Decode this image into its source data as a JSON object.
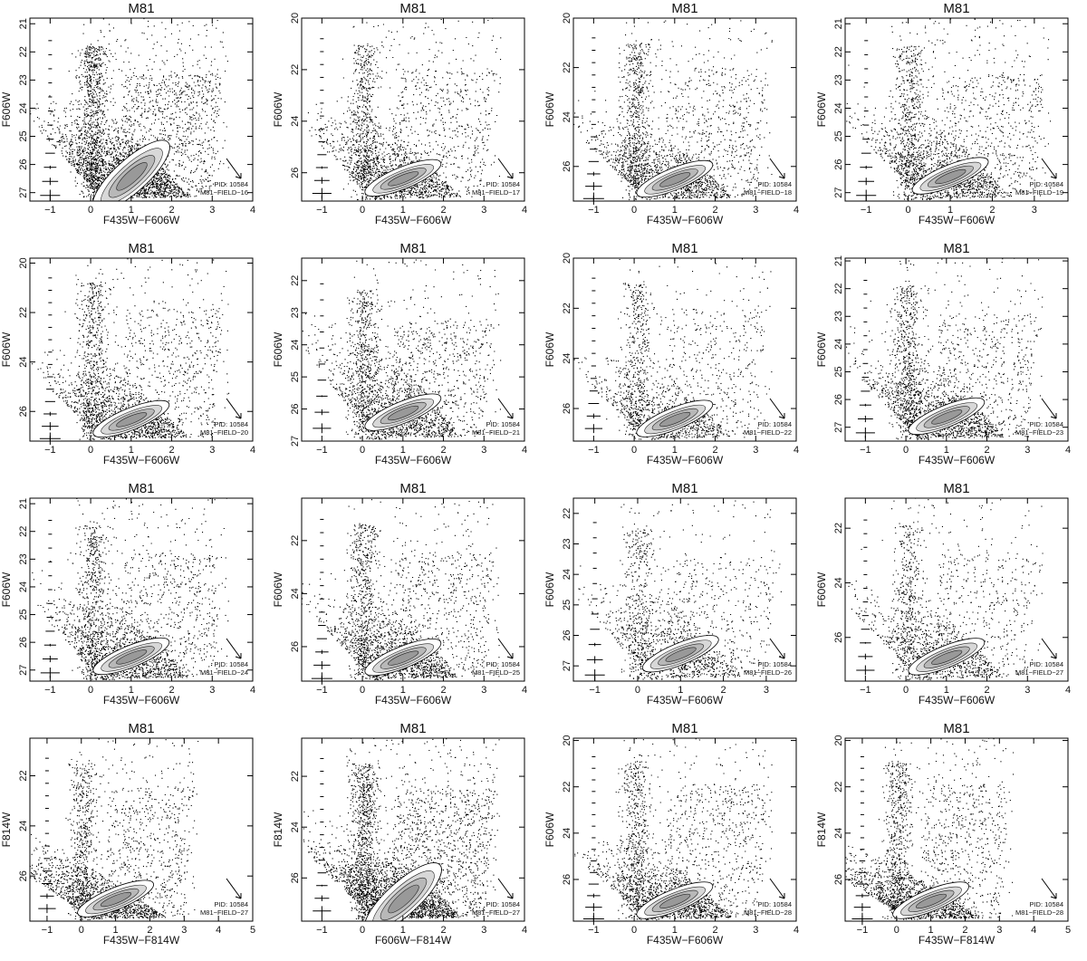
{
  "chart_data": [
    {
      "type": "scatter",
      "title": "M81",
      "xlabel": "F435W−F606W",
      "ylabel": "F606W",
      "xlim": [
        -1.5,
        4
      ],
      "ylim": [
        27.3,
        20.8
      ],
      "xticks": [
        -1,
        0,
        1,
        2,
        3,
        4
      ],
      "yticks": [
        21,
        22,
        23,
        24,
        25,
        26,
        27
      ],
      "pid_label": "PID: 10584",
      "field_label": "M81−FIELD−16"
    },
    {
      "type": "scatter",
      "title": "M81",
      "xlabel": "F435W−F606W",
      "ylabel": "F606W",
      "xlim": [
        -1.5,
        4
      ],
      "ylim": [
        27.1,
        20.0
      ],
      "xticks": [
        -1,
        0,
        1,
        2,
        3,
        4
      ],
      "yticks": [
        20,
        22,
        24,
        26
      ],
      "pid_label": "PID: 10584",
      "field_label": "M81−FIELD−17"
    },
    {
      "type": "scatter",
      "title": "M81",
      "xlabel": "F435W−F606W",
      "ylabel": "F606W",
      "xlim": [
        -1.5,
        4
      ],
      "ylim": [
        27.4,
        20.0
      ],
      "xticks": [
        -1,
        0,
        1,
        2,
        3,
        4
      ],
      "yticks": [
        20,
        22,
        24,
        26
      ],
      "pid_label": "PID: 10584",
      "field_label": "M81−FIELD−18"
    },
    {
      "type": "scatter",
      "title": "M81",
      "xlabel": "F435W−F606W",
      "ylabel": "F606W",
      "xlim": [
        -1.5,
        3.8
      ],
      "ylim": [
        27.3,
        20.8
      ],
      "xticks": [
        -1,
        0,
        1,
        2,
        3
      ],
      "yticks": [
        21,
        22,
        23,
        24,
        25,
        26,
        27
      ],
      "pid_label": "PID: 10584",
      "field_label": "M81−FIELD−19"
    },
    {
      "type": "scatter",
      "title": "M81",
      "xlabel": "F435W−F606W",
      "ylabel": "F606W",
      "xlim": [
        -1.5,
        4
      ],
      "ylim": [
        27.2,
        19.8
      ],
      "xticks": [
        -1,
        0,
        1,
        2,
        3,
        4
      ],
      "yticks": [
        20,
        22,
        24,
        26
      ],
      "pid_label": "PID: 10584",
      "field_label": "M81−FIELD−20"
    },
    {
      "type": "scatter",
      "title": "M81",
      "xlabel": "F435W−F606W",
      "ylabel": "F606W",
      "xlim": [
        -1.5,
        4
      ],
      "ylim": [
        27.0,
        21.3
      ],
      "xticks": [
        -1,
        0,
        1,
        2,
        3,
        4
      ],
      "yticks": [
        22,
        23,
        24,
        25,
        26,
        27
      ],
      "pid_label": "PID: 10584",
      "field_label": "M81−FIELD−21"
    },
    {
      "type": "scatter",
      "title": "M81",
      "xlabel": "F435W−F606W",
      "ylabel": "F606W",
      "xlim": [
        -1.5,
        4
      ],
      "ylim": [
        27.3,
        20.0
      ],
      "xticks": [
        -1,
        0,
        1,
        2,
        3,
        4
      ],
      "yticks": [
        20,
        22,
        24,
        26
      ],
      "pid_label": "PID: 10584",
      "field_label": "M81−FIELD−22"
    },
    {
      "type": "scatter",
      "title": "M81",
      "xlabel": "F435W−F606W",
      "ylabel": "F606W",
      "xlim": [
        -1.5,
        4
      ],
      "ylim": [
        27.5,
        20.9
      ],
      "xticks": [
        -1,
        0,
        1,
        2,
        3,
        4
      ],
      "yticks": [
        21,
        22,
        23,
        24,
        25,
        26,
        27
      ],
      "pid_label": "PID: 10584",
      "field_label": "M81−FIELD−23"
    },
    {
      "type": "scatter",
      "title": "M81",
      "xlabel": "F435W−F606W",
      "ylabel": "F606W",
      "xlim": [
        -1.5,
        4
      ],
      "ylim": [
        27.4,
        20.8
      ],
      "xticks": [
        -1,
        0,
        1,
        2,
        3,
        4
      ],
      "yticks": [
        21,
        22,
        23,
        24,
        25,
        26,
        27
      ],
      "pid_label": "PID: 10584",
      "field_label": "M81−FIELD−24"
    },
    {
      "type": "scatter",
      "title": "M81",
      "xlabel": "F435W−F606W",
      "ylabel": "F606W",
      "xlim": [
        -1.5,
        4
      ],
      "ylim": [
        27.3,
        20.4
      ],
      "xticks": [
        -1,
        0,
        1,
        2,
        3,
        4
      ],
      "yticks": [
        22,
        24,
        26
      ],
      "pid_label": "PID: 10584",
      "field_label": "M81−FIELD−25"
    },
    {
      "type": "scatter",
      "title": "M81",
      "xlabel": "F435W−F606W",
      "ylabel": "F606W",
      "xlim": [
        -1.5,
        3.7
      ],
      "ylim": [
        27.5,
        21.5
      ],
      "xticks": [
        -1,
        0,
        1,
        2,
        3
      ],
      "yticks": [
        22,
        23,
        24,
        25,
        26,
        27
      ],
      "pid_label": "PID: 10584",
      "field_label": "M81−FIELD−26"
    },
    {
      "type": "scatter",
      "title": "M81",
      "xlabel": "F435W−F606W",
      "ylabel": "F606W",
      "xlim": [
        -1.5,
        4
      ],
      "ylim": [
        27.6,
        20.9
      ],
      "xticks": [
        -1,
        0,
        1,
        2,
        3,
        4
      ],
      "yticks": [
        22,
        24,
        26
      ],
      "pid_label": "PID: 10584",
      "field_label": "M81−FIELD−27"
    },
    {
      "type": "scatter",
      "title": "M81",
      "xlabel": "F435W−F814W",
      "ylabel": "F814W",
      "xlim": [
        -1.5,
        5
      ],
      "ylim": [
        27.8,
        20.5
      ],
      "xticks": [
        -1,
        0,
        1,
        2,
        3,
        4,
        5
      ],
      "yticks": [
        22,
        24,
        26
      ],
      "pid_label": "PID: 10584",
      "field_label": "M81−FIELD−27"
    },
    {
      "type": "scatter",
      "title": "M81",
      "xlabel": "F606W−F814W",
      "ylabel": "F814W",
      "xlim": [
        -1.5,
        4
      ],
      "ylim": [
        27.7,
        20.5
      ],
      "xticks": [
        -1,
        0,
        1,
        2,
        3,
        4
      ],
      "yticks": [
        22,
        24,
        26
      ],
      "pid_label": "PID: 10584",
      "field_label": "M81−FIELD−27"
    },
    {
      "type": "scatter",
      "title": "M81",
      "xlabel": "F435W−F606W",
      "ylabel": "F606W",
      "xlim": [
        -1.5,
        4
      ],
      "ylim": [
        27.8,
        19.9
      ],
      "xticks": [
        -1,
        0,
        1,
        2,
        3,
        4
      ],
      "yticks": [
        20,
        22,
        24,
        26
      ],
      "pid_label": "PID: 10584",
      "field_label": "M81−FIELD−28"
    },
    {
      "type": "scatter",
      "title": "M81",
      "xlabel": "F435W−F814W",
      "ylabel": "F814W",
      "xlim": [
        -1.5,
        5
      ],
      "ylim": [
        27.8,
        19.9
      ],
      "xticks": [
        -1,
        0,
        1,
        2,
        3,
        4,
        5
      ],
      "yticks": [
        20,
        22,
        24,
        26
      ],
      "pid_label": "PID: 10584",
      "field_label": "M81−FIELD−28"
    }
  ]
}
